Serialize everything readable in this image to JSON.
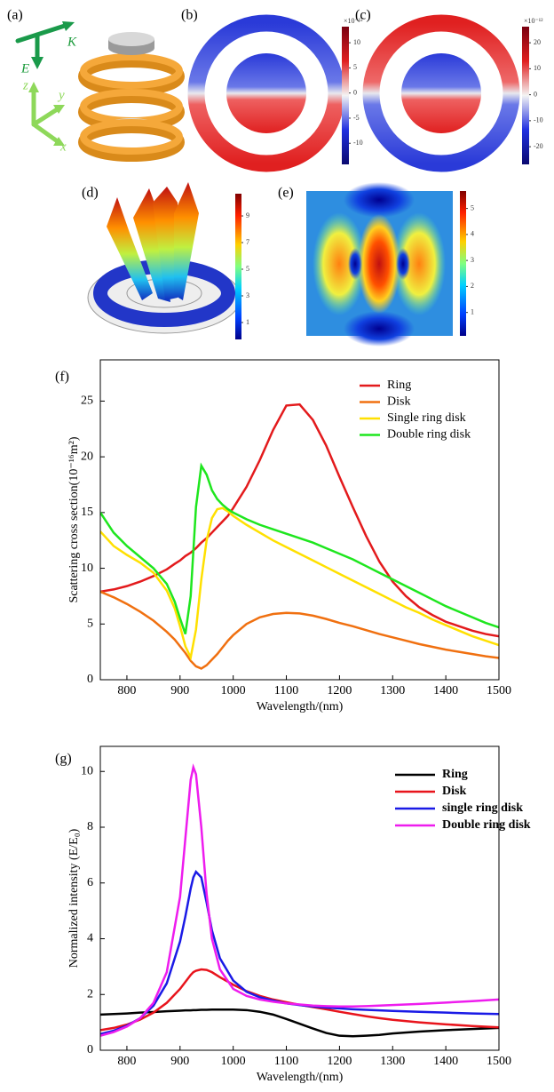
{
  "panels": {
    "a": {
      "label": "(a)",
      "k": "K",
      "e": "E",
      "x": "x",
      "y": "y",
      "z": "z"
    },
    "b": {
      "label": "(b)",
      "colorbar": {
        "exponent": "×10⁻¹²",
        "clim": [
          -14.2,
          13.2
        ],
        "ticks": [
          10,
          5,
          0,
          -5,
          -10
        ]
      }
    },
    "c": {
      "label": "(c)",
      "colorbar": {
        "exponent": "×10⁻¹²",
        "clim": [
          -26.8,
          26.2
        ],
        "ticks": [
          20,
          10,
          0,
          -10,
          -20
        ]
      }
    },
    "d": {
      "label": "(d)",
      "colorbar": {
        "clim": [
          -0.27,
          10.67
        ],
        "ticks": [
          9,
          7,
          5,
          3,
          1
        ]
      }
    },
    "e": {
      "label": "(e)",
      "colorbar": {
        "clim": [
          0.1,
          5.67
        ],
        "ticks": [
          5,
          4,
          3,
          2,
          1
        ]
      }
    }
  },
  "chart_data": [
    {
      "type": "line",
      "label": "(f)",
      "x_label": "Wavelength/(nm)",
      "y_label": "Scattering cross section(10⁻¹⁶m²)",
      "x": [
        750,
        775,
        800,
        825,
        850,
        875,
        890,
        900,
        910,
        920,
        930,
        940,
        950,
        960,
        970,
        980,
        990,
        1000,
        1025,
        1050,
        1075,
        1100,
        1125,
        1150,
        1175,
        1200,
        1225,
        1250,
        1275,
        1300,
        1325,
        1350,
        1375,
        1400,
        1425,
        1450,
        1475,
        1500
      ],
      "series": [
        {
          "name": "Ring",
          "color": "#e31a1c",
          "values": [
            7.9,
            8.1,
            8.4,
            8.8,
            9.3,
            9.9,
            10.4,
            10.7,
            11.1,
            11.4,
            11.8,
            12.3,
            12.7,
            13.2,
            13.7,
            14.2,
            14.7,
            15.4,
            17.3,
            19.7,
            22.4,
            24.6,
            24.7,
            23.3,
            21.0,
            18.2,
            15.5,
            12.9,
            10.6,
            8.8,
            7.5,
            6.5,
            5.8,
            5.2,
            4.8,
            4.4,
            4.1,
            3.9
          ]
        },
        {
          "name": "Disk",
          "color": "#f07010",
          "values": [
            7.9,
            7.4,
            6.8,
            6.1,
            5.3,
            4.3,
            3.6,
            3.0,
            2.4,
            1.7,
            1.2,
            1.0,
            1.3,
            1.8,
            2.3,
            2.9,
            3.5,
            4.0,
            5.0,
            5.6,
            5.9,
            6.0,
            5.95,
            5.75,
            5.45,
            5.1,
            4.8,
            4.45,
            4.1,
            3.8,
            3.5,
            3.2,
            2.95,
            2.7,
            2.5,
            2.3,
            2.1,
            1.95
          ]
        },
        {
          "name": "Single ring disk",
          "color": "#ffe000",
          "values": [
            13.3,
            12.0,
            11.2,
            10.5,
            9.6,
            8.0,
            6.4,
            4.8,
            3.0,
            2.0,
            4.5,
            9.0,
            12.5,
            14.5,
            15.3,
            15.4,
            15.1,
            14.7,
            13.9,
            13.2,
            12.5,
            11.9,
            11.3,
            10.7,
            10.1,
            9.5,
            8.9,
            8.3,
            7.7,
            7.1,
            6.5,
            6.0,
            5.4,
            4.9,
            4.4,
            3.9,
            3.5,
            3.1
          ]
        },
        {
          "name": "Double ring disk",
          "color": "#1ee61e",
          "values": [
            15.0,
            13.2,
            12.0,
            11.0,
            10.0,
            8.6,
            7.0,
            5.5,
            4.1,
            7.5,
            15.5,
            19.2,
            18.4,
            17.0,
            16.2,
            15.7,
            15.3,
            15.0,
            14.4,
            13.9,
            13.5,
            13.1,
            12.7,
            12.3,
            11.8,
            11.3,
            10.8,
            10.2,
            9.6,
            9.0,
            8.4,
            7.8,
            7.2,
            6.6,
            6.1,
            5.6,
            5.1,
            4.7
          ]
        }
      ],
      "xlim": [
        750,
        1500
      ],
      "ylim": [
        0,
        28.7
      ],
      "xticks": [
        800,
        900,
        1000,
        1100,
        1200,
        1300,
        1400,
        1500
      ],
      "yticks": [
        0,
        5,
        10,
        15,
        20,
        25
      ],
      "legend": "upper right"
    },
    {
      "type": "line",
      "label": "(g)",
      "x_label": "Wavelength/(nm)",
      "y_label": "Normalized intensity (E/E₀)",
      "x": [
        750,
        775,
        800,
        825,
        850,
        875,
        900,
        910,
        920,
        925,
        930,
        940,
        950,
        960,
        975,
        1000,
        1025,
        1050,
        1075,
        1100,
        1125,
        1150,
        1175,
        1200,
        1225,
        1250,
        1275,
        1300,
        1350,
        1400,
        1450,
        1500
      ],
      "series": [
        {
          "name": "Ring",
          "color": "#000000",
          "values": [
            1.28,
            1.3,
            1.32,
            1.35,
            1.37,
            1.4,
            1.42,
            1.43,
            1.43,
            1.44,
            1.44,
            1.45,
            1.45,
            1.46,
            1.46,
            1.46,
            1.44,
            1.38,
            1.28,
            1.12,
            0.95,
            0.78,
            0.62,
            0.52,
            0.5,
            0.52,
            0.55,
            0.6,
            0.67,
            0.72,
            0.76,
            0.8
          ]
        },
        {
          "name": "Disk",
          "color": "#e8141c",
          "values": [
            0.72,
            0.8,
            0.92,
            1.1,
            1.35,
            1.7,
            2.2,
            2.45,
            2.7,
            2.8,
            2.85,
            2.9,
            2.88,
            2.8,
            2.62,
            2.35,
            2.12,
            1.95,
            1.82,
            1.72,
            1.63,
            1.55,
            1.47,
            1.38,
            1.3,
            1.22,
            1.15,
            1.09,
            1.0,
            0.93,
            0.87,
            0.82
          ]
        },
        {
          "name": "single ring disk",
          "color": "#1a1ae6",
          "values": [
            0.58,
            0.7,
            0.88,
            1.15,
            1.6,
            2.4,
            3.9,
            4.8,
            5.8,
            6.2,
            6.4,
            6.2,
            5.3,
            4.3,
            3.3,
            2.5,
            2.1,
            1.9,
            1.78,
            1.68,
            1.62,
            1.57,
            1.53,
            1.5,
            1.47,
            1.45,
            1.43,
            1.41,
            1.38,
            1.35,
            1.32,
            1.3
          ]
        },
        {
          "name": "Double ring disk",
          "color": "#ee1cee",
          "values": [
            0.52,
            0.65,
            0.85,
            1.15,
            1.7,
            2.8,
            5.5,
            7.6,
            9.7,
            10.15,
            9.9,
            8.0,
            5.6,
            4.0,
            2.9,
            2.2,
            1.95,
            1.82,
            1.74,
            1.68,
            1.64,
            1.6,
            1.58,
            1.57,
            1.57,
            1.58,
            1.6,
            1.62,
            1.66,
            1.71,
            1.76,
            1.82
          ]
        }
      ],
      "xlim": [
        750,
        1500
      ],
      "ylim": [
        0,
        10.9
      ],
      "xticks": [
        800,
        900,
        1000,
        1100,
        1200,
        1300,
        1400,
        1500
      ],
      "yticks": [
        0,
        2,
        4,
        6,
        8,
        10
      ],
      "legend": "upper right"
    }
  ]
}
